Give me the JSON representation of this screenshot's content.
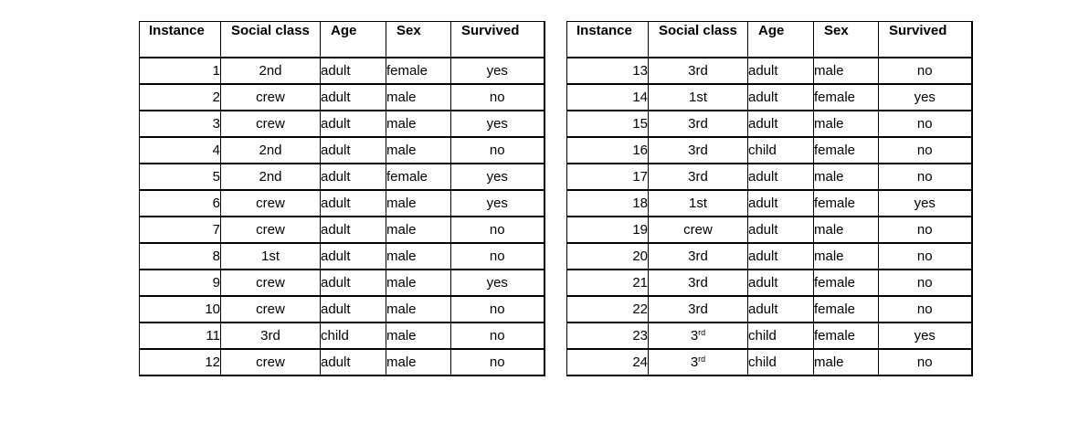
{
  "headers": {
    "instance": "Instance",
    "social_class": "Social class",
    "age": "Age",
    "sex": "Sex",
    "survived": "Survived"
  },
  "tables": [
    {
      "rows": [
        {
          "instance": "1",
          "class": "2nd",
          "age": "adult",
          "sex": "female",
          "survived": "yes"
        },
        {
          "instance": "2",
          "class": "crew",
          "age": "adult",
          "sex": "male",
          "survived": "no"
        },
        {
          "instance": "3",
          "class": "crew",
          "age": "adult",
          "sex": "male",
          "survived": "yes"
        },
        {
          "instance": "4",
          "class": "2nd",
          "age": "adult",
          "sex": "male",
          "survived": "no"
        },
        {
          "instance": "5",
          "class": "2nd",
          "age": "adult",
          "sex": "female",
          "survived": "yes"
        },
        {
          "instance": "6",
          "class": "crew",
          "age": "adult",
          "sex": "male",
          "survived": "yes"
        },
        {
          "instance": "7",
          "class": "crew",
          "age": "adult",
          "sex": "male",
          "survived": "no"
        },
        {
          "instance": "8",
          "class": "1st",
          "age": "adult",
          "sex": "male",
          "survived": "no"
        },
        {
          "instance": "9",
          "class": "crew",
          "age": "adult",
          "sex": "male",
          "survived": "yes"
        },
        {
          "instance": "10",
          "class": "crew",
          "age": "adult",
          "sex": "male",
          "survived": "no"
        },
        {
          "instance": "11",
          "class": "3rd",
          "age": "child",
          "sex": "male",
          "survived": "no"
        },
        {
          "instance": "12",
          "class": "crew",
          "age": "adult",
          "sex": "male",
          "survived": "no"
        }
      ]
    },
    {
      "rows": [
        {
          "instance": "13",
          "class": "3rd",
          "age": "adult",
          "sex": "male",
          "survived": "no"
        },
        {
          "instance": "14",
          "class": "1st",
          "age": "adult",
          "sex": "female",
          "survived": "yes"
        },
        {
          "instance": "15",
          "class": "3rd",
          "age": "adult",
          "sex": "male",
          "survived": "no"
        },
        {
          "instance": "16",
          "class": "3rd",
          "age": "child",
          "sex": "female",
          "survived": "no"
        },
        {
          "instance": "17",
          "class": "3rd",
          "age": "adult",
          "sex": "male",
          "survived": "no"
        },
        {
          "instance": "18",
          "class": "1st",
          "age": "adult",
          "sex": "female",
          "survived": "yes"
        },
        {
          "instance": "19",
          "class": "crew",
          "age": "adult",
          "sex": "male",
          "survived": "no"
        },
        {
          "instance": "20",
          "class": "3rd",
          "age": "adult",
          "sex": "male",
          "survived": "no"
        },
        {
          "instance": "21",
          "class": "3rd",
          "age": "adult",
          "sex": "female",
          "survived": "no"
        },
        {
          "instance": "22",
          "class": "3rd",
          "age": "adult",
          "sex": "female",
          "survived": "no"
        },
        {
          "instance": "23",
          "class": "3",
          "class_sup": "rd",
          "age": "child",
          "sex": "female",
          "survived": "yes"
        },
        {
          "instance": "24",
          "class": "3",
          "class_sup": "rd",
          "age": "child",
          "sex": "male",
          "survived": "no"
        }
      ]
    }
  ]
}
